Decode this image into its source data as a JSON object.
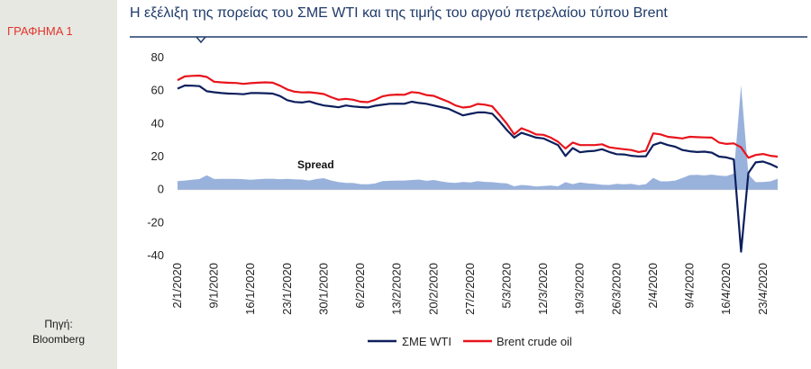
{
  "figure_label": "ΓΡΑΦΗΜΑ 1",
  "source": {
    "line1": "Πηγή:",
    "line2": "Bloomberg"
  },
  "chart_data": {
    "type": "line",
    "title": "Η εξέλιξη της πορείας του ΣΜΕ WTI και της τιμής του αργού πετρελαίου τύπου Brent",
    "ylim": [
      -40,
      80
    ],
    "yticks": [
      -40,
      -20,
      0,
      20,
      40,
      60,
      80
    ],
    "x_tick_labels": [
      "2/1/2020",
      "9/1/2020",
      "16/1/2020",
      "23/1/2020",
      "30/1/2020",
      "6/2/2020",
      "13/2/2020",
      "20/2/2020",
      "27/2/2020",
      "5/3/2020",
      "12/3/2020",
      "19/3/2020",
      "26/3/2020",
      "2/4/2020",
      "9/4/2020",
      "16/4/2020",
      "23/4/2020"
    ],
    "annotation": "Spread",
    "legend_position": "bottom",
    "series": [
      {
        "name": "ΣΜΕ WTI",
        "color": "#0d1f5c",
        "values": [
          61.2,
          63.1,
          63.0,
          62.7,
          59.6,
          59.0,
          58.5,
          58.2,
          58.1,
          57.8,
          58.5,
          58.5,
          58.4,
          58.2,
          56.7,
          54.2,
          53.1,
          52.8,
          53.5,
          52.1,
          51.0,
          50.5,
          49.9,
          51.0,
          50.4,
          50.0,
          49.8,
          50.8,
          51.4,
          52.0,
          52.1,
          52.0,
          53.3,
          52.5,
          52.0,
          51.0,
          50.0,
          49.0,
          47.0,
          45.0,
          45.9,
          46.8,
          46.8,
          46.0,
          41.3,
          36.1,
          31.5,
          34.4,
          33.0,
          31.5,
          31.0,
          29.0,
          27.0,
          20.4,
          25.2,
          22.6,
          23.2,
          23.5,
          24.5,
          22.8,
          21.5,
          21.3,
          20.5,
          20.1,
          20.2,
          27.0,
          28.5,
          27.0,
          26.0,
          24.0,
          23.2,
          22.8,
          23.0,
          22.4,
          20.0,
          19.5,
          18.3,
          -37.6,
          10.0,
          16.5,
          17.0,
          15.5,
          13.4
        ]
      },
      {
        "name": "Brent crude oil",
        "color": "#e8141c",
        "values": [
          66.3,
          68.6,
          68.9,
          69.1,
          68.3,
          65.4,
          65.0,
          64.7,
          64.6,
          64.1,
          64.5,
          64.8,
          65.0,
          64.8,
          63.0,
          60.7,
          59.3,
          58.9,
          59.0,
          58.5,
          57.9,
          56.0,
          54.5,
          55.0,
          54.5,
          53.3,
          53.0,
          54.5,
          56.5,
          57.3,
          57.6,
          57.5,
          59.1,
          58.6,
          57.3,
          56.8,
          55.0,
          53.3,
          51.0,
          49.7,
          50.2,
          51.9,
          51.5,
          50.5,
          45.3,
          39.9,
          33.5,
          37.2,
          35.5,
          33.4,
          33.2,
          31.5,
          29.0,
          24.9,
          28.5,
          27.0,
          27.0,
          27.0,
          27.5,
          25.6,
          25.0,
          24.5,
          24.0,
          22.8,
          23.5,
          34.1,
          33.5,
          32.0,
          31.5,
          31.0,
          32.0,
          31.8,
          31.6,
          31.5,
          28.5,
          27.7,
          28.0,
          25.6,
          19.3,
          21.0,
          21.6,
          20.5,
          20.0
        ]
      }
    ],
    "spread_values": [
      5.1,
      5.5,
      5.9,
      6.4,
      8.7,
      6.4,
      6.5,
      6.5,
      6.5,
      6.3,
      6.0,
      6.3,
      6.6,
      6.6,
      6.3,
      6.5,
      6.2,
      6.1,
      5.5,
      6.4,
      6.9,
      5.5,
      4.6,
      4.0,
      4.1,
      3.3,
      3.2,
      3.7,
      5.1,
      5.3,
      5.5,
      5.5,
      5.8,
      6.1,
      5.3,
      5.8,
      5.0,
      4.3,
      4.0,
      4.7,
      4.3,
      5.1,
      4.7,
      4.5,
      4.0,
      3.8,
      2.0,
      2.8,
      2.5,
      1.9,
      2.2,
      2.5,
      2.0,
      4.5,
      3.3,
      4.4,
      3.8,
      3.5,
      3.0,
      2.8,
      3.5,
      3.2,
      3.5,
      2.7,
      3.3,
      7.1,
      5.0,
      5.0,
      5.5,
      7.0,
      8.8,
      9.0,
      8.6,
      9.1,
      8.5,
      8.2,
      9.7,
      63.2,
      9.3,
      4.5,
      4.6,
      5.0,
      6.6
    ]
  }
}
